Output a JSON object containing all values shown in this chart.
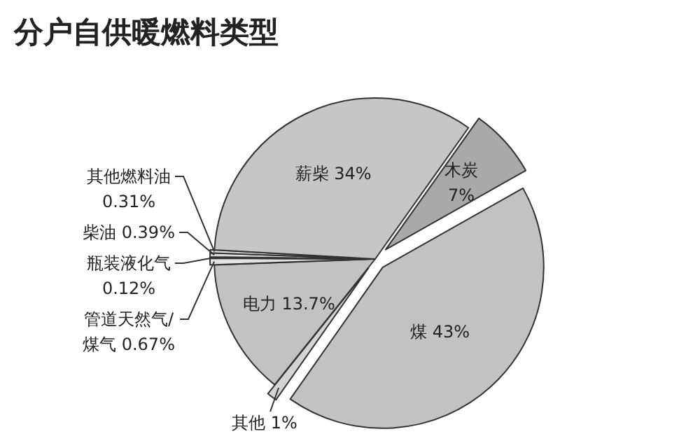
{
  "chart_data": {
    "type": "pie",
    "title": "分户自供暖燃料类型",
    "categories": [
      "木炭",
      "煤",
      "其他",
      "电力",
      "管道天然气/煤气",
      "瓶装液化气",
      "柴油",
      "其他燃料油",
      "薪柴"
    ],
    "values": [
      7,
      43,
      1,
      13.7,
      0.67,
      0.12,
      0.39,
      0.31,
      34
    ],
    "colors": [
      "#a9a9a9",
      "#c2c2c2",
      "#d4d4d4",
      "#c2c2c2",
      "#e2e2e2",
      "#ececec",
      "#dcdcdc",
      "#e6e6e6",
      "#c6c6c6"
    ],
    "value_labels": [
      "7%",
      "43%",
      "1%",
      "13.7%",
      "0.67%",
      "0.12%",
      "0.39%",
      "0.31%",
      "34%"
    ]
  }
}
